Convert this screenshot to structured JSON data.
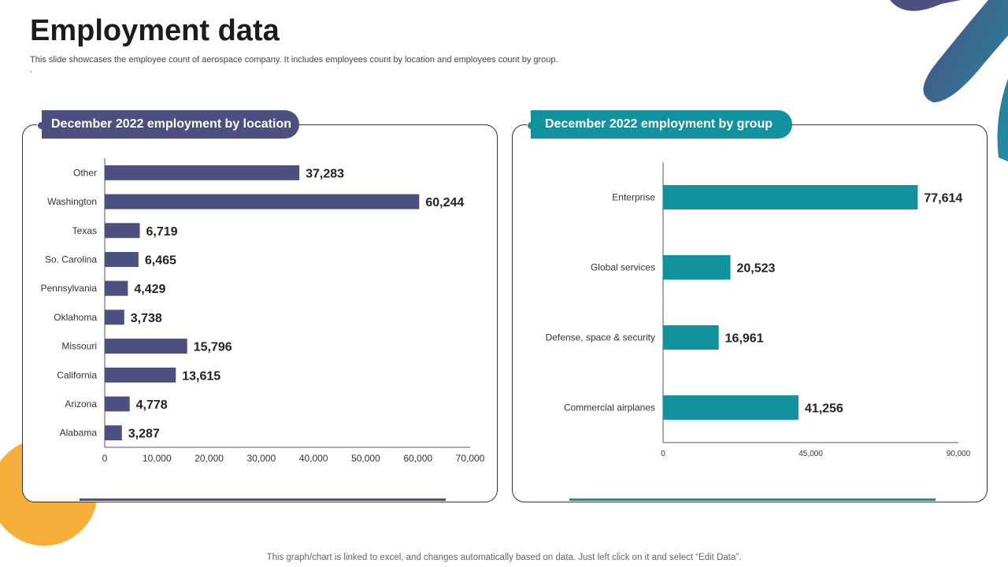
{
  "header": {
    "title": "Employment data",
    "subtitle": "This slide showcases the employee count of aerospace company. It includes employees count by location and employees count by group.",
    "subtitle_dot": "."
  },
  "footer": {
    "note": "This graph/chart is linked to excel, and changes automatically based on data. Just left click on it and select “Edit Data”."
  },
  "colors": {
    "location_bar": "#4c5080",
    "group_bar": "#12929f",
    "accent_orange": "#f7ae3b"
  },
  "chart_data": [
    {
      "type": "bar",
      "orientation": "horizontal",
      "title": "December 2022 employment by location",
      "categories": [
        "Other",
        "Washington",
        "Texas",
        "So. Carolina",
        "Pennsylvania",
        "Oklahoma",
        "Missouri",
        "California",
        "Arizona",
        "Alabama"
      ],
      "values": [
        37283,
        60244,
        6719,
        6465,
        4429,
        3738,
        15796,
        13615,
        4778,
        3287
      ],
      "value_labels": [
        "37,283",
        "60,244",
        "6,719",
        "6,465",
        "4,429",
        "3,738",
        "15,796",
        "13,615",
        "4,778",
        "3,287"
      ],
      "xlim": [
        0,
        70000
      ],
      "xticks": [
        0,
        10000,
        20000,
        30000,
        40000,
        50000,
        60000,
        70000
      ],
      "xtick_labels": [
        "0",
        "10,000",
        "20,000",
        "30,000",
        "40,000",
        "50,000",
        "60,000",
        "70,000"
      ],
      "xlabel": "",
      "ylabel": "",
      "grid": false
    },
    {
      "type": "bar",
      "orientation": "horizontal",
      "title": "December 2022 employment by group",
      "categories": [
        "Enterprise",
        "Global services",
        "Defense, space & security",
        "Commercial airplanes"
      ],
      "values": [
        77614,
        20523,
        16961,
        41256
      ],
      "value_labels": [
        "77,614",
        "20,523",
        "16,961",
        "41,256"
      ],
      "xlim": [
        0,
        90000
      ],
      "xticks": [
        0,
        45000,
        90000
      ],
      "xtick_labels": [
        "0",
        "45,000",
        "90,000"
      ],
      "xlabel": "",
      "ylabel": "",
      "grid": false
    }
  ]
}
